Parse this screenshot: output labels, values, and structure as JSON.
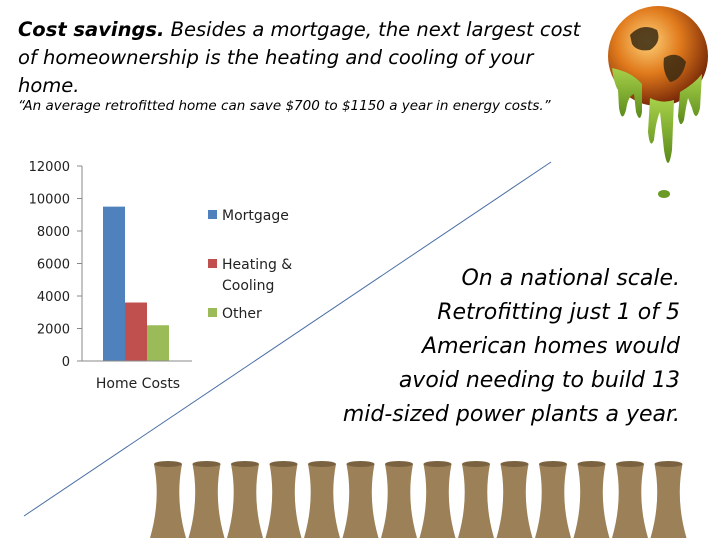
{
  "heading": {
    "bold": "Cost savings.",
    "rest": " Besides a mortgage, the next largest cost of homeownership is the heating and cooling of your home."
  },
  "quote": "“An average retrofitted home can save $700 to $1150 a year in energy costs.”",
  "national": {
    "lead": "On a national scale.",
    "body": "Retrofitting just 1 of 5\nAmerican homes would\navoid needing to build 13\nmid-sized power plants a year."
  },
  "chart_data": {
    "type": "bar",
    "categories": [
      "Home Costs"
    ],
    "series": [
      {
        "name": "Mortgage",
        "values": [
          9500
        ],
        "color": "#4f81bd"
      },
      {
        "name": "Heating & Cooling",
        "values": [
          3600
        ],
        "color": "#c0504d"
      },
      {
        "name": "Other",
        "values": [
          2200
        ],
        "color": "#9bbb59"
      }
    ],
    "yticks": [
      "0",
      "2000",
      "4000",
      "6000",
      "8000",
      "10000",
      "12000"
    ],
    "ylim": [
      0,
      12000
    ],
    "legend": "right",
    "grid": false
  },
  "colors": {
    "diagonal_line": "#4a6fa5",
    "tower": "#9c8058"
  },
  "icons": {
    "globe": "melting-globe-icon",
    "towers": "cooling-tower-icon"
  }
}
